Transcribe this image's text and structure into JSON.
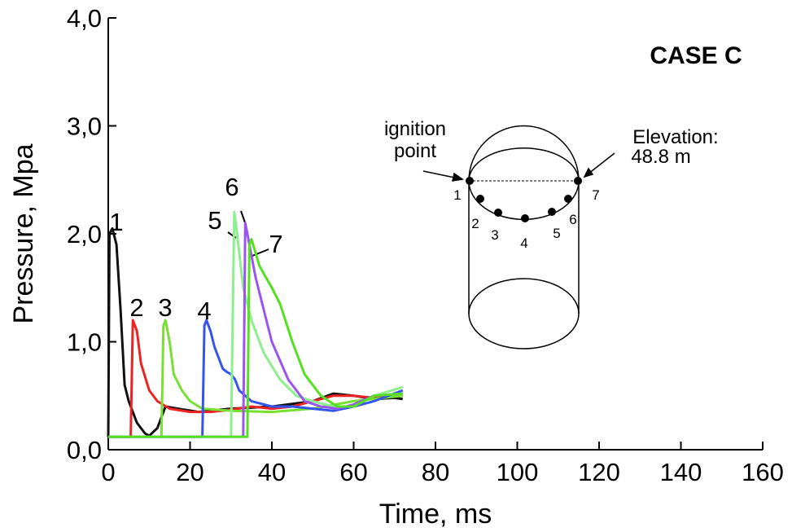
{
  "chart_data": {
    "type": "line",
    "title": "CASE C",
    "x_label": "Time, ms",
    "y_label": "Pressure, Mpa",
    "xlim": [
      0,
      160
    ],
    "xticks": [
      0,
      20,
      40,
      60,
      80,
      100,
      120,
      140,
      160
    ],
    "ylim": [
      0,
      4
    ],
    "yticks": [
      {
        "value": 0,
        "label": "0,0"
      },
      {
        "value": 1,
        "label": "1,0"
      },
      {
        "value": 2,
        "label": "2,0"
      },
      {
        "value": 3,
        "label": "3,0"
      },
      {
        "value": 4,
        "label": "4,0"
      }
    ],
    "series": [
      {
        "name": "1",
        "color": "#111111",
        "x": [
          0,
          0.3,
          1,
          2,
          3,
          4,
          5,
          7,
          9,
          10,
          12,
          14,
          17,
          22,
          30,
          40,
          50,
          55,
          60,
          65,
          70,
          72
        ],
        "values": [
          0.12,
          2.0,
          2.05,
          1.9,
          1.3,
          0.6,
          0.45,
          0.25,
          0.15,
          0.13,
          0.2,
          0.4,
          0.38,
          0.35,
          0.38,
          0.4,
          0.45,
          0.52,
          0.5,
          0.47,
          0.48,
          0.47
        ]
      },
      {
        "name": "2",
        "color": "#ee2222",
        "x": [
          0,
          5.5,
          6,
          7,
          8,
          10,
          12,
          15,
          20,
          25,
          30,
          35,
          40,
          45,
          50,
          55,
          60,
          65,
          72
        ],
        "values": [
          0.12,
          0.12,
          1.2,
          1.1,
          0.8,
          0.55,
          0.45,
          0.38,
          0.35,
          0.35,
          0.37,
          0.4,
          0.38,
          0.4,
          0.45,
          0.5,
          0.5,
          0.48,
          0.5
        ]
      },
      {
        "name": "3",
        "color": "#77e033",
        "x": [
          0,
          13,
          13.5,
          14,
          15,
          16,
          18,
          20,
          23,
          30,
          40,
          50,
          60,
          72
        ],
        "values": [
          0.12,
          0.12,
          1.15,
          1.2,
          1.0,
          0.7,
          0.55,
          0.45,
          0.38,
          0.36,
          0.35,
          0.38,
          0.45,
          0.5
        ]
      },
      {
        "name": "4",
        "color": "#3355ee",
        "x": [
          0,
          23,
          23.5,
          24,
          25,
          26,
          27,
          28,
          29,
          30,
          31,
          32,
          35,
          40,
          45,
          50,
          55,
          60,
          65,
          72
        ],
        "values": [
          0.12,
          0.12,
          1.15,
          1.2,
          1.1,
          0.95,
          0.85,
          0.75,
          0.72,
          0.7,
          0.65,
          0.55,
          0.45,
          0.4,
          0.4,
          0.38,
          0.36,
          0.4,
          0.45,
          0.55
        ]
      },
      {
        "name": "5",
        "color": "#8eef8e",
        "x": [
          0,
          30,
          30.8,
          31.5,
          33,
          35,
          38,
          42,
          46,
          50,
          55,
          60,
          65,
          72
        ],
        "values": [
          0.12,
          0.12,
          2.2,
          2.0,
          1.5,
          1.2,
          0.9,
          0.65,
          0.5,
          0.45,
          0.4,
          0.4,
          0.5,
          0.58
        ]
      },
      {
        "name": "6",
        "color": "#9955ee",
        "x": [
          0,
          33,
          33.5,
          34,
          36,
          38,
          40,
          44,
          48,
          52,
          56,
          60,
          65,
          72
        ],
        "values": [
          0.12,
          0.12,
          2.1,
          2.0,
          1.6,
          1.3,
          1.0,
          0.65,
          0.45,
          0.4,
          0.38,
          0.42,
          0.5,
          0.52
        ]
      },
      {
        "name": "7",
        "color": "#55e022",
        "x": [
          0,
          34,
          34.5,
          35,
          37,
          40,
          42,
          45,
          48,
          52,
          56,
          60,
          65,
          72
        ],
        "values": [
          0.12,
          0.12,
          1.9,
          1.95,
          1.7,
          1.5,
          1.35,
          1.0,
          0.7,
          0.5,
          0.4,
          0.4,
          0.5,
          0.52
        ]
      }
    ],
    "inset": {
      "ignition_label": [
        "ignition",
        "point"
      ],
      "elevation_label": [
        "Elevation:",
        "48.8 m"
      ],
      "point_labels": [
        "1",
        "2",
        "3",
        "4",
        "5",
        "6",
        "7"
      ]
    }
  }
}
